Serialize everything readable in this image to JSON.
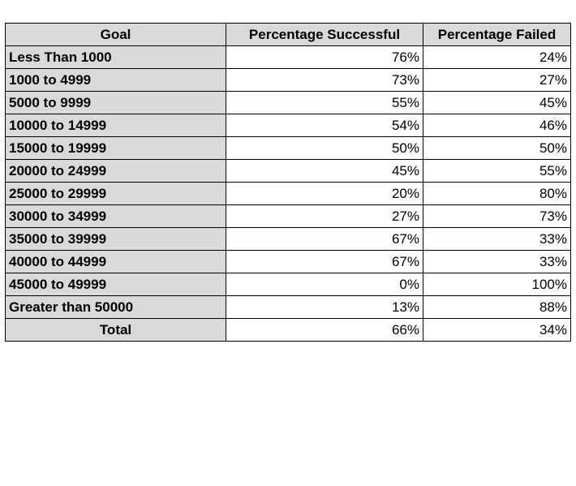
{
  "table": {
    "headers": [
      "Goal",
      "Percentage Successful",
      "Percentage Failed"
    ],
    "rows": [
      {
        "goal": "Less Than 1000",
        "successful": "76%",
        "failed": "24%"
      },
      {
        "goal": "1000 to 4999",
        "successful": "73%",
        "failed": "27%"
      },
      {
        "goal": "5000 to 9999",
        "successful": "55%",
        "failed": "45%"
      },
      {
        "goal": "10000 to 14999",
        "successful": "54%",
        "failed": "46%"
      },
      {
        "goal": "15000 to 19999",
        "successful": "50%",
        "failed": "50%"
      },
      {
        "goal": "20000 to 24999",
        "successful": "45%",
        "failed": "55%"
      },
      {
        "goal": "25000 to 29999",
        "successful": "20%",
        "failed": "80%"
      },
      {
        "goal": "30000 to 34999",
        "successful": "27%",
        "failed": "73%"
      },
      {
        "goal": "35000 to 39999",
        "successful": "67%",
        "failed": "33%"
      },
      {
        "goal": "40000 to 44999",
        "successful": "67%",
        "failed": "33%"
      },
      {
        "goal": "45000 to 49999",
        "successful": "0%",
        "failed": "100%"
      },
      {
        "goal": "Greater than 50000",
        "successful": "13%",
        "failed": "88%"
      }
    ],
    "total": {
      "goal": "Total",
      "successful": "66%",
      "failed": "34%"
    }
  },
  "colors": {
    "header_fill": "#d9d9d9",
    "cell_fill": "#ffffff",
    "border": "#000000"
  }
}
